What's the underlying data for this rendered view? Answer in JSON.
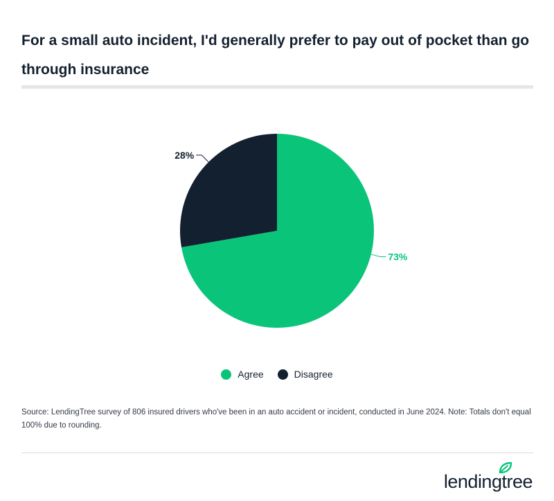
{
  "title": "For a small auto incident, I'd generally prefer to pay out of pocket than go through insurance",
  "chart_data": {
    "type": "pie",
    "title": "For a small auto incident, I'd generally prefer to pay out of pocket than go through insurance",
    "categories": [
      "Agree",
      "Disagree"
    ],
    "values": [
      73,
      28
    ],
    "data_labels": [
      "73%",
      "28%"
    ],
    "colors": [
      "#0ac47a",
      "#13202f"
    ],
    "label_colors": [
      "#0ac47a",
      "#13202f"
    ],
    "legend": [
      "Agree",
      "Disagree"
    ],
    "legend_position": "bottom-center"
  },
  "source": "Source: LendingTree survey of 806 insured drivers who've been in an auto accident or incident, conducted in June 2024. Note: Totals don't equal 100% due to rounding.",
  "logo": {
    "text": "lendingtree",
    "icon": "leaf-icon",
    "color": "#0ac47a"
  }
}
